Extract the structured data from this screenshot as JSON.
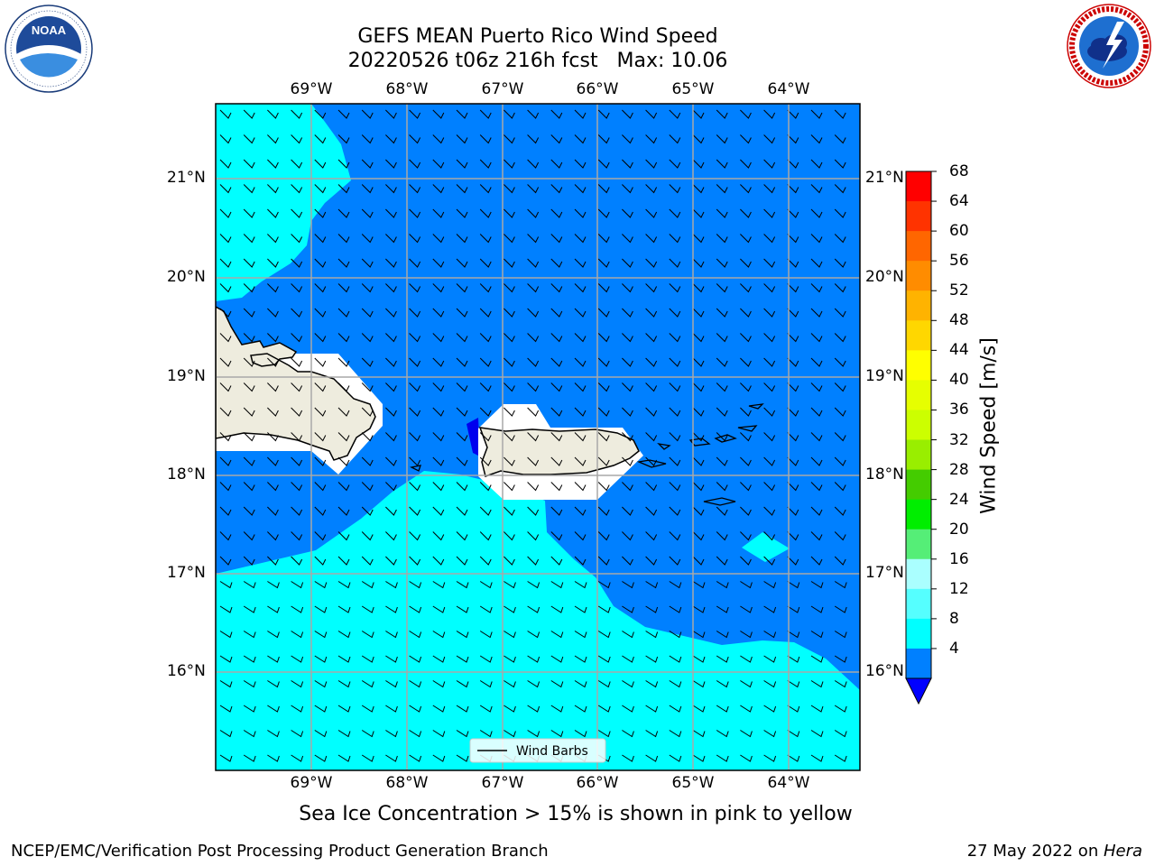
{
  "title": {
    "line1": "GEFS MEAN Puerto Rico Wind Speed",
    "line2": "20220526 t06z 216h fcst   Max: 10.06"
  },
  "logos": {
    "left": {
      "name": "NOAA",
      "ring_text": "NATIONAL OCEANIC AND ATMOSPHERIC ADMINISTRATION • U.S. DEPARTMENT OF COMMERCE"
    },
    "right": {
      "name": "NATIONAL WEATHER SERVICE"
    }
  },
  "map": {
    "lon_labels": [
      "69°W",
      "68°W",
      "67°W",
      "66°W",
      "65°W",
      "64°W"
    ],
    "lat_labels": [
      "21°N",
      "20°N",
      "19°N",
      "18°N",
      "17°N",
      "16°N"
    ],
    "legend_label": "Wind Barbs"
  },
  "colorbar": {
    "label": "Wind Speed [m/s]",
    "ticks": [
      "68",
      "64",
      "60",
      "56",
      "52",
      "48",
      "44",
      "40",
      "36",
      "32",
      "28",
      "24",
      "20",
      "16",
      "12",
      "8",
      "4"
    ],
    "colors_top_to_bottom": [
      "#ff0000",
      "#ff3300",
      "#ff6600",
      "#ff8c00",
      "#ffb300",
      "#ffd700",
      "#ffff00",
      "#e6ff00",
      "#ccff00",
      "#99ee00",
      "#44cc00",
      "#00ee00",
      "#55ee77",
      "#aaffff",
      "#55ffff",
      "#00ffff",
      "#0080ff"
    ],
    "under_color": "#0000ff"
  },
  "colors": {
    "deep_blue": "#0080ff",
    "cyan": "#00ffff",
    "land": "#eeecde",
    "dark_blue": "#0000ee"
  },
  "note": "Sea Ice Concentration > 15% is shown in pink to yellow",
  "footer": {
    "left": "NCEP/EMC/Verification Post Processing Product Generation Branch",
    "date": "27 May 2022 on ",
    "machine": "Hera"
  }
}
